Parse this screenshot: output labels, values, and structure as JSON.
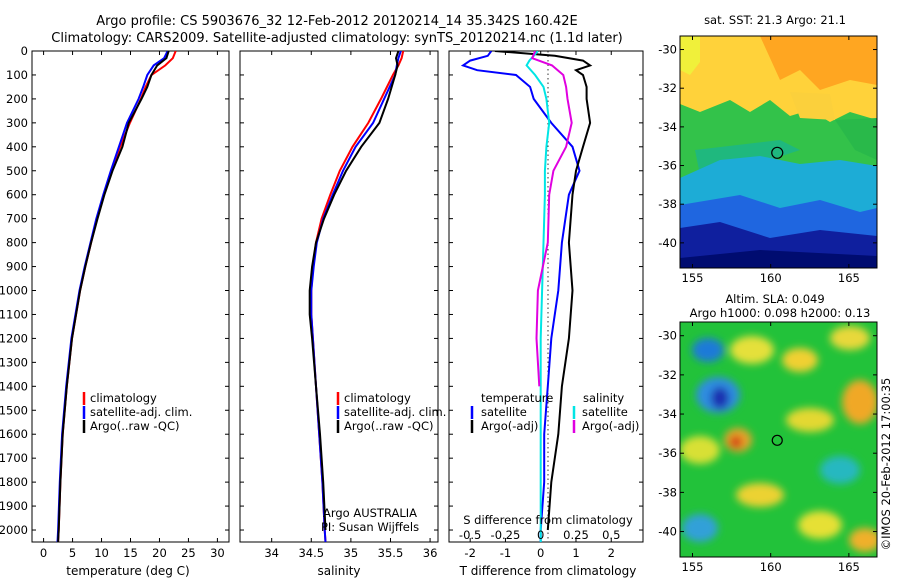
{
  "header": {
    "title_line1": "Argo profile: CS 5903676_32 12-Feb-2012 20120214_14 35.342S 160.42E",
    "title_line2": "Climatology: CARS2009. Satellite-adjusted climatology: synTS_20120214.nc (1.1d later)"
  },
  "colors": {
    "climatology": "#ff0000",
    "satellite": "#0000ff",
    "argo": "#000000",
    "satellite_salinity": "#00e5e5",
    "argo_salinity": "#e000e0"
  },
  "legends": {
    "temperature": [
      "climatology",
      "satellite-adj. clim.",
      "Argo(..raw -QC)"
    ],
    "salinity": [
      "climatology",
      "satellite-adj. clim.",
      "Argo(..raw -QC)"
    ],
    "difference_heads": [
      "temperature",
      "salinity"
    ],
    "difference_t": [
      "satellite",
      "Argo(-adj)"
    ],
    "difference_s": [
      "satellite",
      "Argo(-adj)"
    ]
  },
  "annotations": {
    "argo_country": "Argo AUSTRALIA",
    "pi": "PI: Susan Wijffels",
    "s_diff_label": "S difference from climatology",
    "imos_stamp": "©IMOS 20-Feb-2012 17:00:35"
  },
  "maps": {
    "sst_title": "sat. SST: 21.3 Argo: 21.1",
    "sla_title_line1": "Altim. SLA: 0.049",
    "sla_title_line2": "Argo h1000: 0.098 h2000: 0.13",
    "lat_ticks": [
      "-30",
      "-32",
      "-34",
      "-36",
      "-38",
      "-40"
    ],
    "lon_ticks": [
      "155",
      "160",
      "165"
    ],
    "float_position": {
      "lon": 160.42,
      "lat": -35.342
    }
  },
  "chart_data": [
    {
      "type": "line",
      "xlabel": "temperature (deg C)",
      "ylim": [
        0,
        2050
      ],
      "xlim": [
        -2,
        32
      ],
      "x_ticks": [
        0,
        5,
        10,
        15,
        20,
        25,
        30
      ],
      "y_ticks": [
        0,
        100,
        200,
        300,
        400,
        500,
        600,
        700,
        800,
        900,
        1000,
        1100,
        1200,
        1300,
        1400,
        1500,
        1600,
        1700,
        1800,
        1900,
        2000
      ],
      "series": [
        {
          "name": "climatology",
          "color_key": "climatology",
          "depth": [
            0,
            30,
            60,
            100,
            150,
            200,
            300,
            400,
            500,
            600,
            700,
            800,
            900,
            1000,
            1200,
            1400,
            1600,
            1800,
            2000,
            2050
          ],
          "values": [
            22.8,
            22.3,
            21.0,
            18.6,
            17.6,
            16.8,
            14.9,
            13.2,
            11.7,
            10.4,
            9.2,
            8.2,
            7.2,
            6.3,
            4.9,
            4.0,
            3.3,
            2.9,
            2.6,
            2.5
          ]
        },
        {
          "name": "satellite-adj. clim.",
          "color_key": "satellite",
          "depth": [
            0,
            30,
            60,
            100,
            150,
            200,
            300,
            400,
            500,
            600,
            700,
            800,
            900,
            1000,
            1200,
            1400,
            1600,
            1800,
            2000,
            2050
          ],
          "values": [
            21.4,
            20.8,
            19.0,
            17.9,
            17.2,
            16.4,
            14.4,
            13.0,
            11.6,
            10.3,
            9.1,
            8.1,
            7.1,
            6.2,
            4.8,
            3.9,
            3.2,
            2.8,
            2.5,
            2.4
          ]
        },
        {
          "name": "Argo(..raw -QC)",
          "color_key": "argo",
          "depth": [
            0,
            30,
            60,
            100,
            150,
            200,
            300,
            400,
            500,
            600,
            700,
            800,
            900,
            1000,
            1200,
            1400,
            1600,
            1800,
            2000,
            2050
          ],
          "values": [
            21.6,
            21.2,
            19.6,
            18.6,
            17.9,
            16.9,
            14.7,
            13.6,
            11.9,
            10.5,
            9.3,
            8.2,
            7.2,
            6.3,
            4.9,
            4.0,
            3.3,
            2.9,
            2.6,
            2.5
          ]
        }
      ]
    },
    {
      "type": "line",
      "xlabel": "salinity",
      "ylim": [
        0,
        2050
      ],
      "xlim": [
        33.6,
        36.1
      ],
      "x_ticks": [
        34,
        34.5,
        35,
        35.5,
        36
      ],
      "x_tick_labels": [
        "34",
        "34.5",
        "35",
        "35.5",
        "36"
      ],
      "series": [
        {
          "name": "climatology",
          "color_key": "climatology",
          "depth": [
            0,
            30,
            60,
            100,
            200,
            300,
            400,
            500,
            600,
            700,
            800,
            900,
            1000,
            1100,
            1200,
            1400,
            1600,
            1800,
            2000,
            2050
          ],
          "values": [
            35.66,
            35.64,
            35.6,
            35.53,
            35.38,
            35.22,
            35.02,
            34.86,
            34.74,
            34.63,
            34.56,
            34.52,
            34.5,
            34.5,
            34.52,
            34.56,
            34.6,
            34.64,
            34.67,
            34.68
          ]
        },
        {
          "name": "satellite-adj. clim.",
          "color_key": "satellite",
          "depth": [
            0,
            30,
            60,
            100,
            200,
            300,
            400,
            500,
            600,
            700,
            800,
            900,
            1000,
            1100,
            1200,
            1400,
            1600,
            1800,
            2000,
            2050
          ],
          "values": [
            35.63,
            35.6,
            35.58,
            35.56,
            35.42,
            35.28,
            35.06,
            34.9,
            34.77,
            34.65,
            34.57,
            34.53,
            34.5,
            34.5,
            34.52,
            34.56,
            34.6,
            34.64,
            34.67,
            34.68
          ]
        },
        {
          "name": "Argo(..raw -QC)",
          "color_key": "argo",
          "depth": [
            0,
            30,
            60,
            100,
            200,
            300,
            400,
            500,
            600,
            700,
            800,
            900,
            1000,
            1100,
            1200,
            1400,
            1600,
            1800,
            2000
          ],
          "values": [
            35.6,
            35.57,
            35.59,
            35.56,
            35.47,
            35.36,
            35.13,
            34.94,
            34.79,
            34.66,
            34.56,
            34.51,
            34.48,
            34.48,
            34.51,
            34.56,
            34.61,
            34.65,
            34.68
          ]
        }
      ]
    },
    {
      "type": "line",
      "xlabel": "T difference from climatology",
      "x_ticks": [
        -2,
        -1,
        0,
        1,
        2
      ],
      "xlim": [
        -2.6,
        2.9
      ],
      "s_axis_ticks": [
        "-0.5",
        "-0.25",
        "0",
        "0.25",
        "0.5"
      ],
      "ylim": [
        0,
        2050
      ],
      "series": [
        {
          "name": "satellite",
          "variable": "temperature",
          "color_key": "satellite",
          "depth": [
            0,
            20,
            40,
            60,
            80,
            100,
            150,
            200,
            300,
            400,
            500,
            600,
            800,
            1000,
            1200,
            1400,
            1600,
            1800,
            2000,
            2050
          ],
          "values": [
            -1.4,
            -1.5,
            -2.0,
            -2.2,
            -1.8,
            -0.7,
            -0.3,
            -0.2,
            0.3,
            0.9,
            1.1,
            0.8,
            0.6,
            0.5,
            0.3,
            0.2,
            0.1,
            0.1,
            0.0,
            0.0
          ]
        },
        {
          "name": "Argo(-adj)",
          "variable": "temperature",
          "color_key": "argo",
          "depth": [
            0,
            20,
            40,
            60,
            80,
            100,
            150,
            200,
            300,
            400,
            500,
            600,
            800,
            1000,
            1200,
            1400,
            1600,
            1800,
            2000
          ],
          "values": [
            -1.3,
            0.4,
            1.2,
            1.4,
            1.0,
            1.2,
            1.3,
            1.3,
            1.4,
            1.2,
            1.0,
            0.9,
            0.8,
            0.9,
            0.8,
            0.6,
            0.5,
            0.3,
            0.2
          ]
        },
        {
          "name": "satellite",
          "variable": "salinity",
          "color_key": "satellite_salinity",
          "depth": [
            0,
            20,
            40,
            60,
            100,
            150,
            200,
            300,
            400,
            500,
            600,
            800,
            1000,
            1200,
            1400,
            1600,
            1800,
            2000,
            2050
          ],
          "values": [
            -0.02,
            -0.05,
            -0.08,
            -0.1,
            -0.04,
            0.02,
            0.04,
            0.06,
            0.04,
            0.03,
            0.03,
            0.02,
            0.01,
            0.0,
            0.0,
            0.0,
            0.0,
            0.0,
            0.0
          ]
        },
        {
          "name": "Argo(-adj)",
          "variable": "salinity",
          "color_key": "argo_salinity",
          "depth": [
            0,
            30,
            60,
            100,
            150,
            200,
            300,
            400,
            500,
            600,
            800,
            1000,
            1200,
            1400
          ],
          "values": [
            -0.04,
            -0.06,
            0.08,
            0.16,
            0.18,
            0.19,
            0.22,
            0.18,
            0.09,
            0.06,
            0.05,
            -0.02,
            -0.03,
            -0.01
          ]
        }
      ]
    }
  ]
}
